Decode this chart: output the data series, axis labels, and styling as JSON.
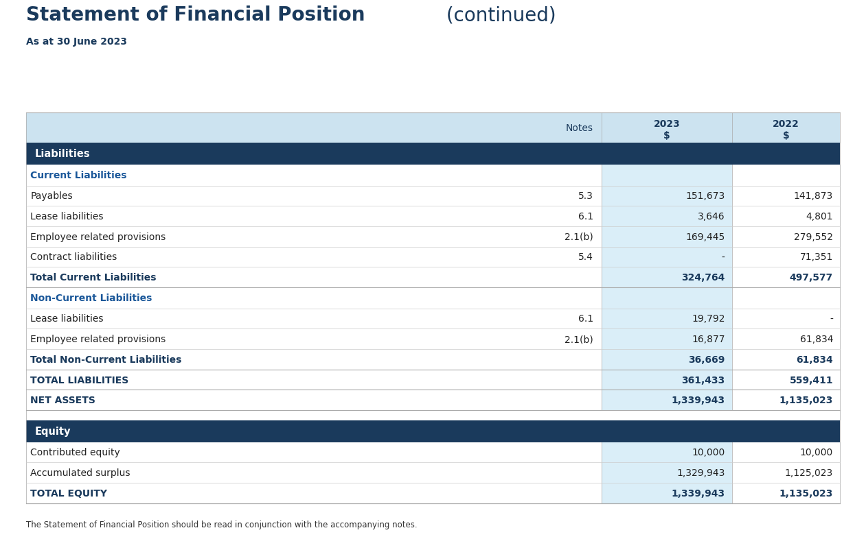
{
  "title_bold": "Statement of Financial Position",
  "title_normal": " (continued)",
  "subtitle": "As at 30 June 2023",
  "title_color": "#1a3a5c",
  "header_bg": "#cce3f0",
  "section_header_bg": "#1a3a5c",
  "section_header_fg": "#ffffff",
  "subheader_fg": "#1a5799",
  "total_fg": "#1a3a5c",
  "body_fg": "#222222",
  "highlight_col_bg": "#daeef8",
  "col_2023_header": "2023\n$",
  "col_2022_header": "2022\n$",
  "col_notes_header": "Notes",
  "footnote": "The Statement of Financial Position should be read in conjunction with the accompanying notes.",
  "rows": [
    {
      "type": "section_header",
      "label": "Liabilities",
      "notes": "",
      "val2023": "",
      "val2022": ""
    },
    {
      "type": "subheader",
      "label": "Current Liabilities",
      "notes": "",
      "val2023": "",
      "val2022": ""
    },
    {
      "type": "data",
      "label": "Payables",
      "notes": "5.3",
      "val2023": "151,673",
      "val2022": "141,873"
    },
    {
      "type": "data",
      "label": "Lease liabilities",
      "notes": "6.1",
      "val2023": "3,646",
      "val2022": "4,801"
    },
    {
      "type": "data",
      "label": "Employee related provisions",
      "notes": "2.1(b)",
      "val2023": "169,445",
      "val2022": "279,552"
    },
    {
      "type": "data",
      "label": "Contract liabilities",
      "notes": "5.4",
      "val2023": "-",
      "val2022": "71,351"
    },
    {
      "type": "subtotal",
      "label": "Total Current Liabilities",
      "notes": "",
      "val2023": "324,764",
      "val2022": "497,577"
    },
    {
      "type": "subheader",
      "label": "Non-Current Liabilities",
      "notes": "",
      "val2023": "",
      "val2022": ""
    },
    {
      "type": "data",
      "label": "Lease liabilities",
      "notes": "6.1",
      "val2023": "19,792",
      "val2022": "-"
    },
    {
      "type": "data",
      "label": "Employee related provisions",
      "notes": "2.1(b)",
      "val2023": "16,877",
      "val2022": "61,834"
    },
    {
      "type": "subtotal",
      "label": "Total Non-Current Liabilities",
      "notes": "",
      "val2023": "36,669",
      "val2022": "61,834"
    },
    {
      "type": "total",
      "label": "TOTAL LIABILITIES",
      "notes": "",
      "val2023": "361,433",
      "val2022": "559,411"
    },
    {
      "type": "total",
      "label": "NET ASSETS",
      "notes": "",
      "val2023": "1,339,943",
      "val2022": "1,135,023"
    },
    {
      "type": "spacer",
      "label": "",
      "notes": "",
      "val2023": "",
      "val2022": ""
    },
    {
      "type": "section_header",
      "label": "Equity",
      "notes": "",
      "val2023": "",
      "val2022": ""
    },
    {
      "type": "data",
      "label": "Contributed equity",
      "notes": "",
      "val2023": "10,000",
      "val2022": "10,000"
    },
    {
      "type": "data",
      "label": "Accumulated surplus",
      "notes": "",
      "val2023": "1,329,943",
      "val2022": "1,125,023"
    },
    {
      "type": "total",
      "label": "TOTAL EQUITY",
      "notes": "",
      "val2023": "1,339,943",
      "val2022": "1,135,023"
    }
  ]
}
